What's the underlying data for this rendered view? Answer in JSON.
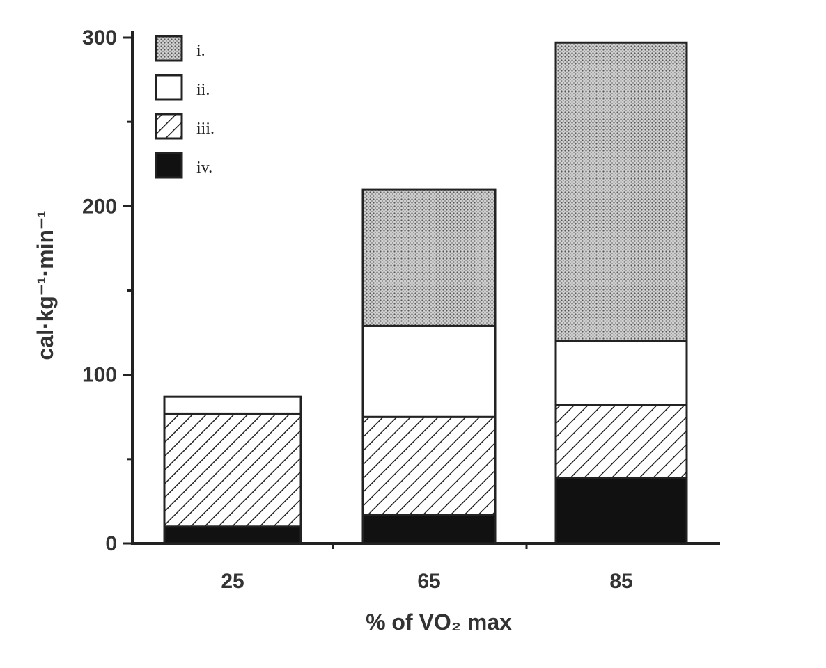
{
  "chart_data": {
    "type": "bar",
    "stacked": true,
    "title": "",
    "xlabel": "% of VO₂ max",
    "ylabel": "cal·kg⁻¹·min⁻¹",
    "ylim": [
      0,
      300
    ],
    "yticks": [
      "0",
      "100",
      "200",
      "300"
    ],
    "categories": [
      "25",
      "65",
      "85"
    ],
    "series": [
      {
        "name": "iv.",
        "pattern": "solid-black",
        "values": [
          10,
          17,
          39
        ]
      },
      {
        "name": "iii.",
        "pattern": "diagonal-hatch",
        "values": [
          67,
          58,
          43
        ]
      },
      {
        "name": "ii.",
        "pattern": "white",
        "values": [
          10,
          54,
          38
        ]
      },
      {
        "name": "i.",
        "pattern": "dotted-gray",
        "values": [
          0,
          81,
          177
        ]
      }
    ],
    "legend": {
      "placement": "top-left",
      "order": [
        "i.",
        "ii.",
        "iii.",
        "iv."
      ]
    },
    "grid": false
  }
}
